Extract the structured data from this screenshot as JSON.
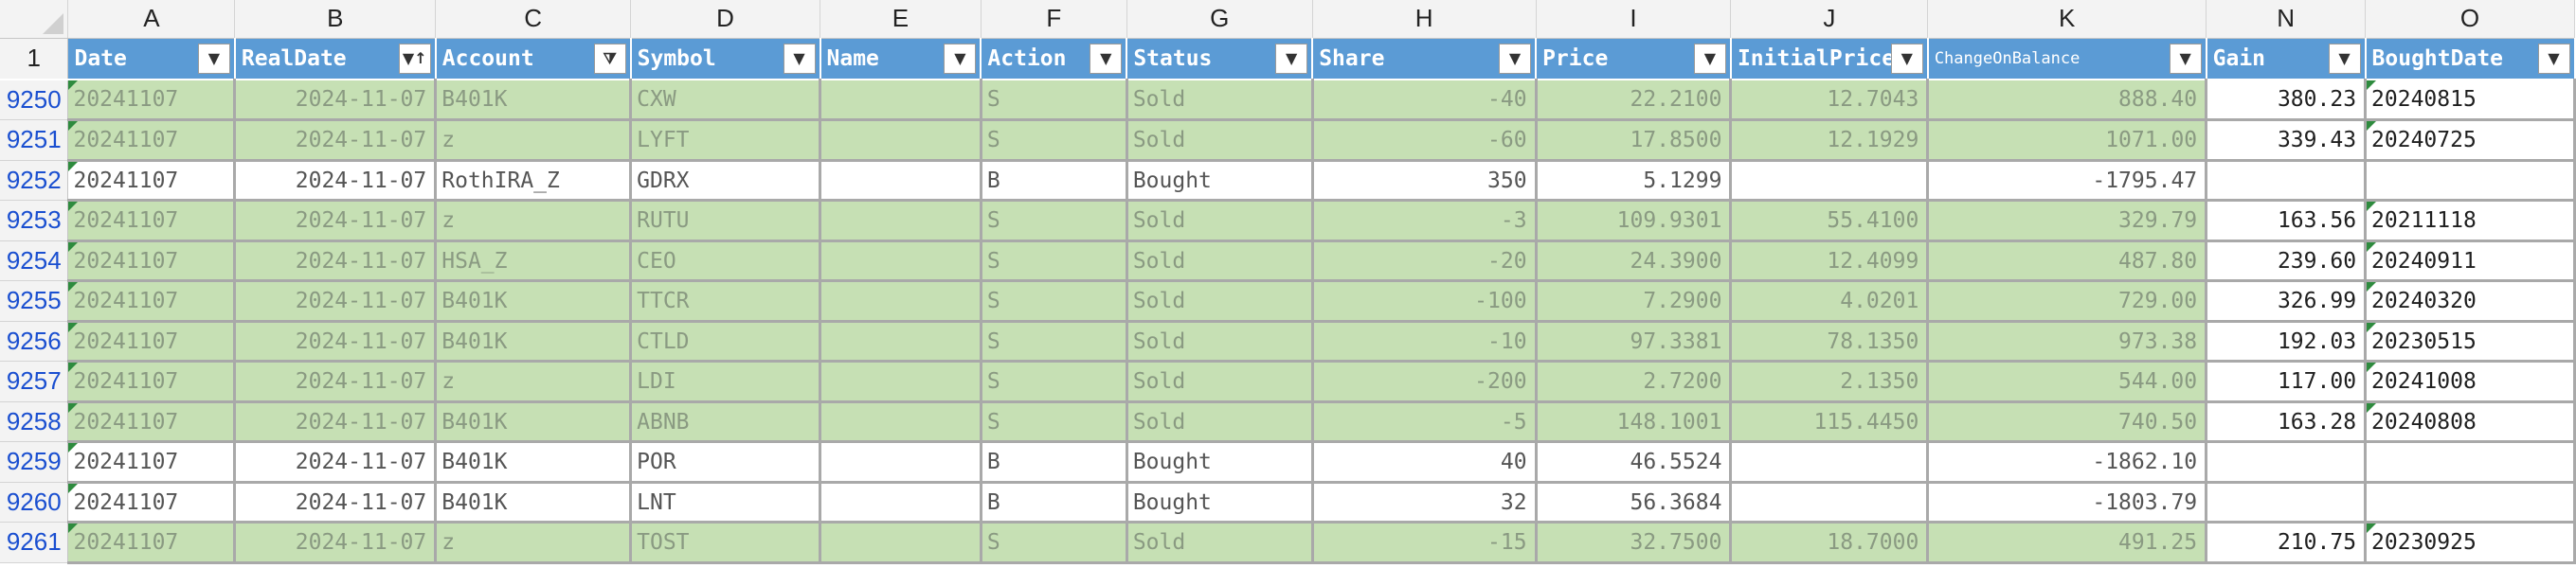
{
  "column_letters": [
    "A",
    "B",
    "C",
    "D",
    "E",
    "F",
    "G",
    "H",
    "I",
    "J",
    "K",
    "N",
    "O"
  ],
  "header_row_number": "1",
  "headers": [
    {
      "label": "Date",
      "button": "▼"
    },
    {
      "label": "RealDate",
      "button": "▼↑"
    },
    {
      "label": "Account",
      "button": "⧩"
    },
    {
      "label": "Symbol",
      "button": "▼"
    },
    {
      "label": "Name",
      "button": "▼"
    },
    {
      "label": "Action",
      "button": "▼"
    },
    {
      "label": "Status",
      "button": "▼"
    },
    {
      "label": "Share",
      "button": "▼"
    },
    {
      "label": "Price",
      "button": "▼"
    },
    {
      "label": "InitialPrice",
      "button": "▼"
    },
    {
      "label": "ChangeOnBalance",
      "button": "▼"
    },
    {
      "label": "Gain",
      "button": "▼"
    },
    {
      "label": "BoughtDate",
      "button": "▼"
    }
  ],
  "rows": [
    {
      "num": "9250",
      "shade": "green",
      "cells": [
        "20241107",
        "2024-11-07",
        "B401K",
        "CXW",
        "",
        "S",
        "Sold",
        "-40",
        "22.2100",
        "12.7043",
        "888.40",
        "380.23",
        "20240815"
      ]
    },
    {
      "num": "9251",
      "shade": "green",
      "cells": [
        "20241107",
        "2024-11-07",
        "z",
        "LYFT",
        "",
        "S",
        "Sold",
        "-60",
        "17.8500",
        "12.1929",
        "1071.00",
        "339.43",
        "20240725"
      ]
    },
    {
      "num": "9252",
      "shade": "white",
      "cells": [
        "20241107",
        "2024-11-07",
        "RothIRA_Z",
        "GDRX",
        "",
        "B",
        "Bought",
        "350",
        "5.1299",
        "",
        "-1795.47",
        "",
        ""
      ]
    },
    {
      "num": "9253",
      "shade": "green",
      "cells": [
        "20241107",
        "2024-11-07",
        "z",
        "RUTU",
        "",
        "S",
        "Sold",
        "-3",
        "109.9301",
        "55.4100",
        "329.79",
        "163.56",
        "20211118"
      ]
    },
    {
      "num": "9254",
      "shade": "green",
      "cells": [
        "20241107",
        "2024-11-07",
        "HSA_Z",
        "CEO",
        "",
        "S",
        "Sold",
        "-20",
        "24.3900",
        "12.4099",
        "487.80",
        "239.60",
        "20240911"
      ]
    },
    {
      "num": "9255",
      "shade": "green",
      "cells": [
        "20241107",
        "2024-11-07",
        "B401K",
        "TTCR",
        "",
        "S",
        "Sold",
        "-100",
        "7.2900",
        "4.0201",
        "729.00",
        "326.99",
        "20240320"
      ]
    },
    {
      "num": "9256",
      "shade": "green",
      "cells": [
        "20241107",
        "2024-11-07",
        "B401K",
        "CTLD",
        "",
        "S",
        "Sold",
        "-10",
        "97.3381",
        "78.1350",
        "973.38",
        "192.03",
        "20230515"
      ]
    },
    {
      "num": "9257",
      "shade": "green",
      "cells": [
        "20241107",
        "2024-11-07",
        "z",
        "LDI",
        "",
        "S",
        "Sold",
        "-200",
        "2.7200",
        "2.1350",
        "544.00",
        "117.00",
        "20241008"
      ]
    },
    {
      "num": "9258",
      "shade": "green",
      "cells": [
        "20241107",
        "2024-11-07",
        "B401K",
        "ABNB",
        "",
        "S",
        "Sold",
        "-5",
        "148.1001",
        "115.4450",
        "740.50",
        "163.28",
        "20240808"
      ]
    },
    {
      "num": "9259",
      "shade": "white",
      "cells": [
        "20241107",
        "2024-11-07",
        "B401K",
        "POR",
        "",
        "B",
        "Bought",
        "40",
        "46.5524",
        "",
        "-1862.10",
        "",
        ""
      ]
    },
    {
      "num": "9260",
      "shade": "white",
      "cells": [
        "20241107",
        "2024-11-07",
        "B401K",
        "LNT",
        "",
        "B",
        "Bought",
        "32",
        "56.3684",
        "",
        "-1803.79",
        "",
        ""
      ]
    },
    {
      "num": "9261",
      "shade": "green",
      "cells": [
        "20241107",
        "2024-11-07",
        "z",
        "TOST",
        "",
        "S",
        "Sold",
        "-15",
        "32.7500",
        "18.7000",
        "491.25",
        "210.75",
        "20230925"
      ]
    }
  ],
  "colors": {
    "header_blue": "#5b9bd5",
    "row_green": "#c6e0b4",
    "row_number_blue": "#1a4fd0",
    "gridline": "#a9a9a9"
  }
}
